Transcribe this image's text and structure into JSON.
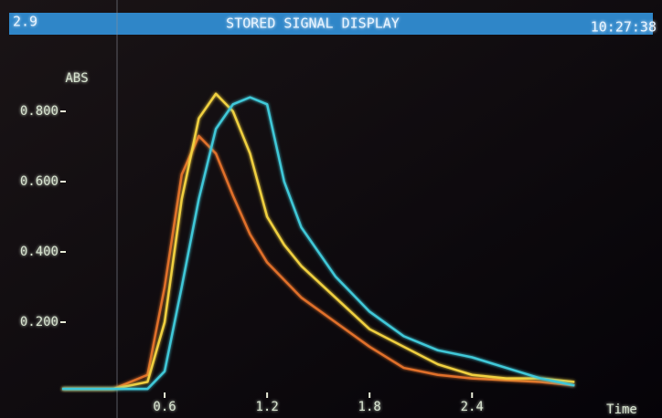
{
  "chart_data": {
    "type": "line",
    "channel": "2.9",
    "title": "STORED SIGNAL DISPLAY",
    "clock": "10:27:38",
    "y_label": "ABS",
    "x_label": "Time",
    "x": [
      0,
      0.3,
      0.5,
      0.6,
      0.7,
      0.8,
      0.9,
      1.0,
      1.1,
      1.2,
      1.3,
      1.4,
      1.6,
      1.8,
      2.0,
      2.2,
      2.4,
      2.6,
      2.8,
      3.0
    ],
    "series": [
      {
        "color": "#e0702a",
        "values": [
          0.01,
          0.01,
          0.05,
          0.3,
          0.62,
          0.73,
          0.68,
          0.56,
          0.45,
          0.37,
          0.32,
          0.27,
          0.2,
          0.13,
          0.07,
          0.05,
          0.04,
          0.035,
          0.03,
          0.02
        ]
      },
      {
        "color": "#f0d040",
        "values": [
          0.01,
          0.01,
          0.03,
          0.2,
          0.55,
          0.78,
          0.85,
          0.8,
          0.68,
          0.5,
          0.42,
          0.36,
          0.27,
          0.18,
          0.13,
          0.08,
          0.05,
          0.04,
          0.04,
          0.03
        ]
      },
      {
        "color": "#40c8d8",
        "values": [
          0.01,
          0.01,
          0.01,
          0.06,
          0.3,
          0.55,
          0.75,
          0.82,
          0.84,
          0.82,
          0.6,
          0.47,
          0.33,
          0.23,
          0.16,
          0.12,
          0.1,
          0.07,
          0.04,
          0.02
        ]
      }
    ],
    "xlim": [
      0,
      3.1
    ],
    "ylim": [
      0,
      0.9
    ],
    "xticks": [
      0.6,
      1.2,
      1.8,
      2.4
    ],
    "yticks": [
      {
        "value": 0.2,
        "label": "0.200"
      },
      {
        "value": 0.4,
        "label": "0.400"
      },
      {
        "value": 0.6,
        "label": "0.600"
      },
      {
        "value": 0.8,
        "label": "0.800"
      }
    ]
  }
}
